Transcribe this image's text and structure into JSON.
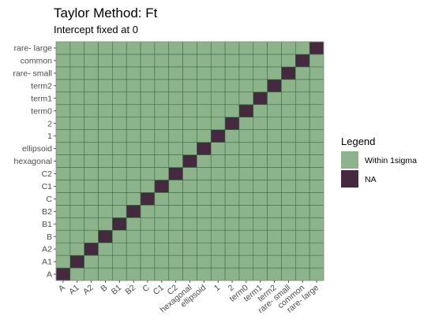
{
  "chart_data": {
    "type": "heatmap",
    "title": "Taylor Method: Ft",
    "subtitle": "Intercept fixed at 0",
    "xlabel": "",
    "ylabel": "",
    "x_categories": [
      "A",
      "A1",
      "A2",
      "B",
      "B1",
      "B2",
      "C",
      "C1",
      "C2",
      "hexagonal",
      "ellipsoid",
      "1",
      "2",
      "term0",
      "term1",
      "term2",
      "rare- small",
      "common",
      "rare- large"
    ],
    "y_categories": [
      "A",
      "A1",
      "A2",
      "B",
      "B1",
      "B2",
      "C",
      "C1",
      "C2",
      "hexagonal",
      "ellipsoid",
      "1",
      "2",
      "term0",
      "term1",
      "term2",
      "rare- small",
      "common",
      "rare- large"
    ],
    "cell_rule": "diagonal cells (x == y) are NA; all other cells are Within 1sigma",
    "legend": {
      "title": "Legend",
      "position": "right",
      "entries": [
        {
          "label": "Within 1sigma",
          "color": "#8db38a"
        },
        {
          "label": "NA",
          "color": "#45293f"
        }
      ]
    },
    "grid_line_color": "#3f6e45",
    "panel_border_color": "#999999"
  }
}
